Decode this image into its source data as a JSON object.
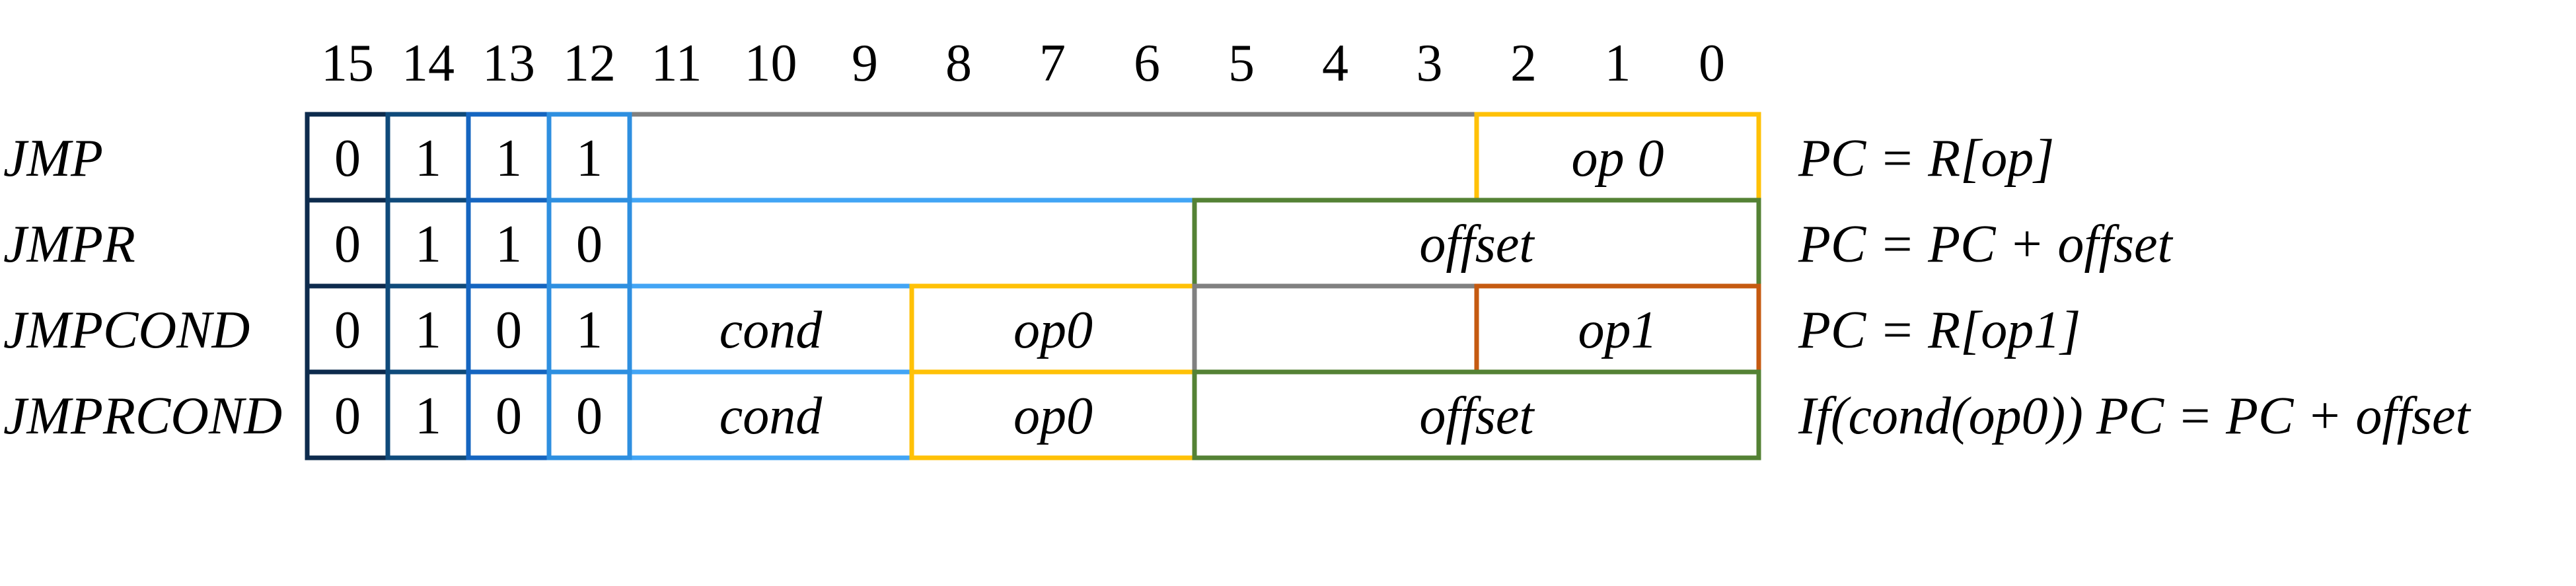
{
  "bit_numbers": [
    "15",
    "14",
    "13",
    "12",
    "11",
    "10",
    "9",
    "8",
    "7",
    "6",
    "5",
    "4",
    "3",
    "2",
    "1",
    "0"
  ],
  "colors": {
    "bit15": "#0d2b4d",
    "bit14": "#0f4a7a",
    "bit13": "#1565c0",
    "bit12": "#2e8fe0",
    "blue": "#42a5f5",
    "gray": "#808080",
    "yellow": "#ffc107",
    "green": "#548235",
    "orange": "#c55a11"
  },
  "rows": [
    {
      "mnemonic": "JMP",
      "opcode": [
        "0",
        "1",
        "1",
        "1"
      ],
      "fields": [
        {
          "label": "",
          "hi": 11,
          "lo": 3,
          "color": "gray"
        },
        {
          "label": "op 0",
          "hi": 2,
          "lo": 0,
          "color": "yellow"
        }
      ],
      "description": "PC = R[op]"
    },
    {
      "mnemonic": "JMPR",
      "opcode": [
        "0",
        "1",
        "1",
        "0"
      ],
      "fields": [
        {
          "label": "",
          "hi": 11,
          "lo": 6,
          "color": "blue"
        },
        {
          "label": "offset",
          "hi": 5,
          "lo": 0,
          "color": "green"
        }
      ],
      "description": "PC = PC + offset"
    },
    {
      "mnemonic": "JMPCOND",
      "opcode": [
        "0",
        "1",
        "0",
        "1"
      ],
      "fields": [
        {
          "label": "cond",
          "hi": 11,
          "lo": 9,
          "color": "blue"
        },
        {
          "label": "op0",
          "hi": 8,
          "lo": 6,
          "color": "yellow"
        },
        {
          "label": "",
          "hi": 5,
          "lo": 3,
          "color": "gray"
        },
        {
          "label": "op1",
          "hi": 2,
          "lo": 0,
          "color": "orange"
        }
      ],
      "description": "PC = R[op1]"
    },
    {
      "mnemonic": "JMPRCOND",
      "opcode": [
        "0",
        "1",
        "0",
        "0"
      ],
      "fields": [
        {
          "label": "cond",
          "hi": 11,
          "lo": 9,
          "color": "blue"
        },
        {
          "label": "op0",
          "hi": 8,
          "lo": 6,
          "color": "yellow"
        },
        {
          "label": "offset",
          "hi": 5,
          "lo": 0,
          "color": "green"
        }
      ],
      "description": "If(cond(op0)) PC = PC + offset"
    }
  ]
}
